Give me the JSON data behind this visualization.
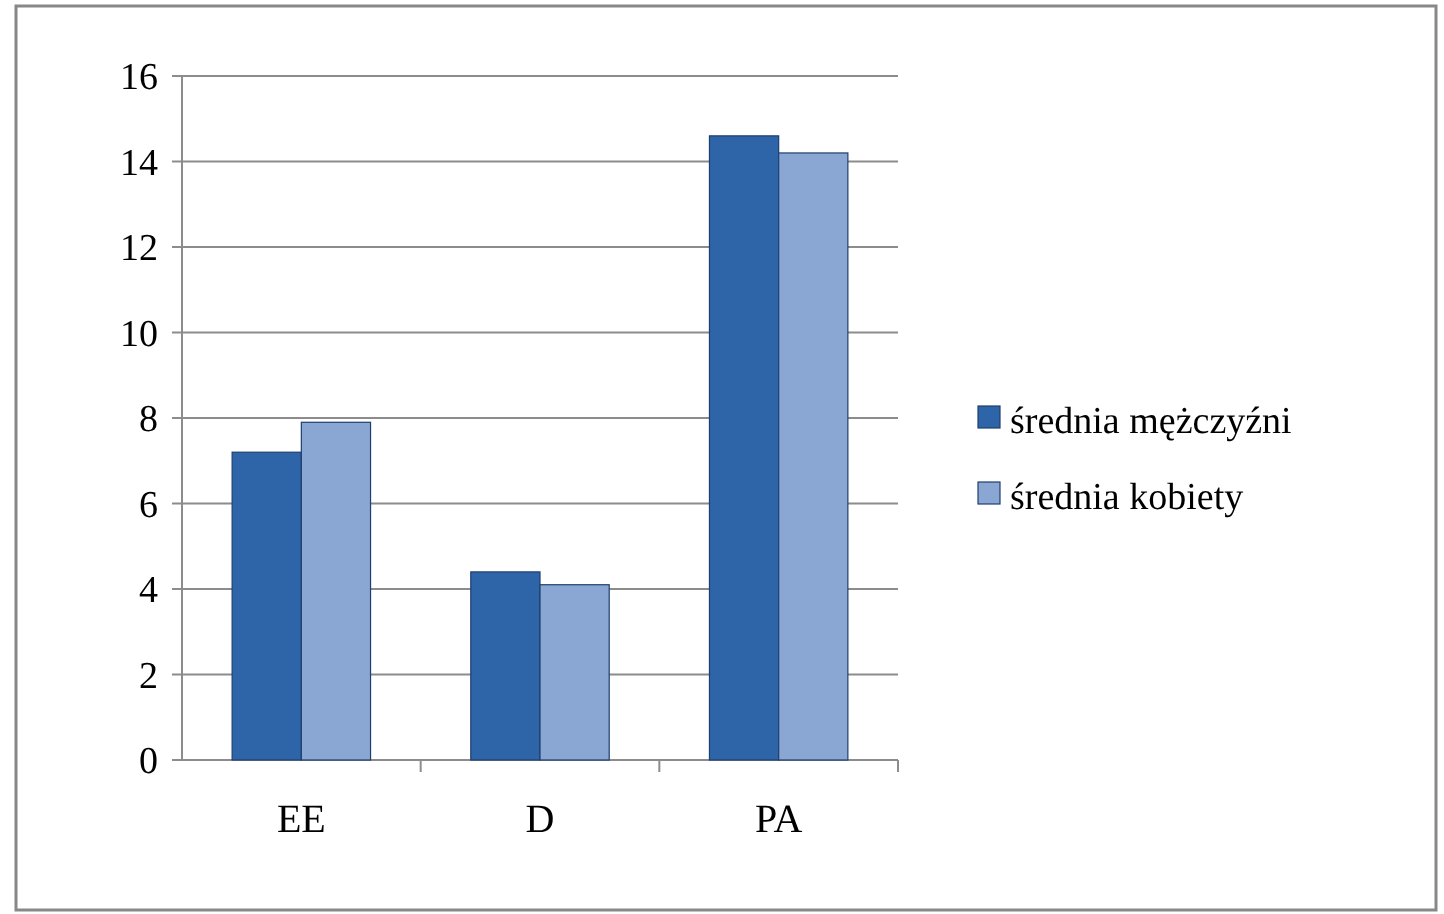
{
  "chart_data": {
    "type": "bar",
    "categories": [
      "EE",
      "D",
      "PA"
    ],
    "series": [
      {
        "name": "średnia mężczyźni",
        "color": "#2e64a8",
        "values": [
          7.2,
          4.4,
          14.6
        ]
      },
      {
        "name": "średnia kobiety",
        "color": "#8aa6d2",
        "values": [
          7.9,
          4.1,
          14.2
        ]
      }
    ],
    "ylim": [
      0,
      16
    ],
    "yticks": [
      0,
      2,
      4,
      6,
      8,
      10,
      12,
      14,
      16
    ],
    "grid": "y",
    "legend": "right"
  }
}
